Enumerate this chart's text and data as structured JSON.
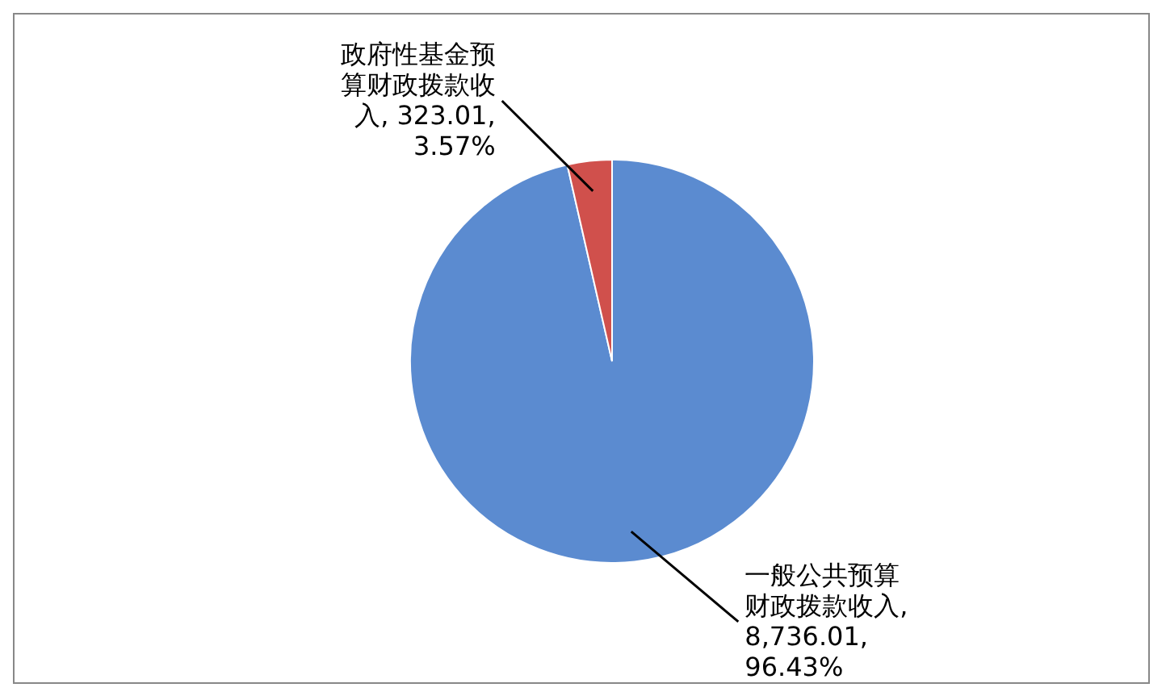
{
  "chart_data": {
    "type": "pie",
    "categories": [
      "一般公共预算财政拨款收入",
      "政府性基金预算财政拨款收入"
    ],
    "values": [
      8736.01,
      323.01
    ],
    "colors": [
      "#5b8bd0",
      "#d0504c"
    ],
    "value_labels": [
      ", 8,736.01, 96.43%",
      ", 323.01, 3.57%"
    ],
    "legend": false
  }
}
